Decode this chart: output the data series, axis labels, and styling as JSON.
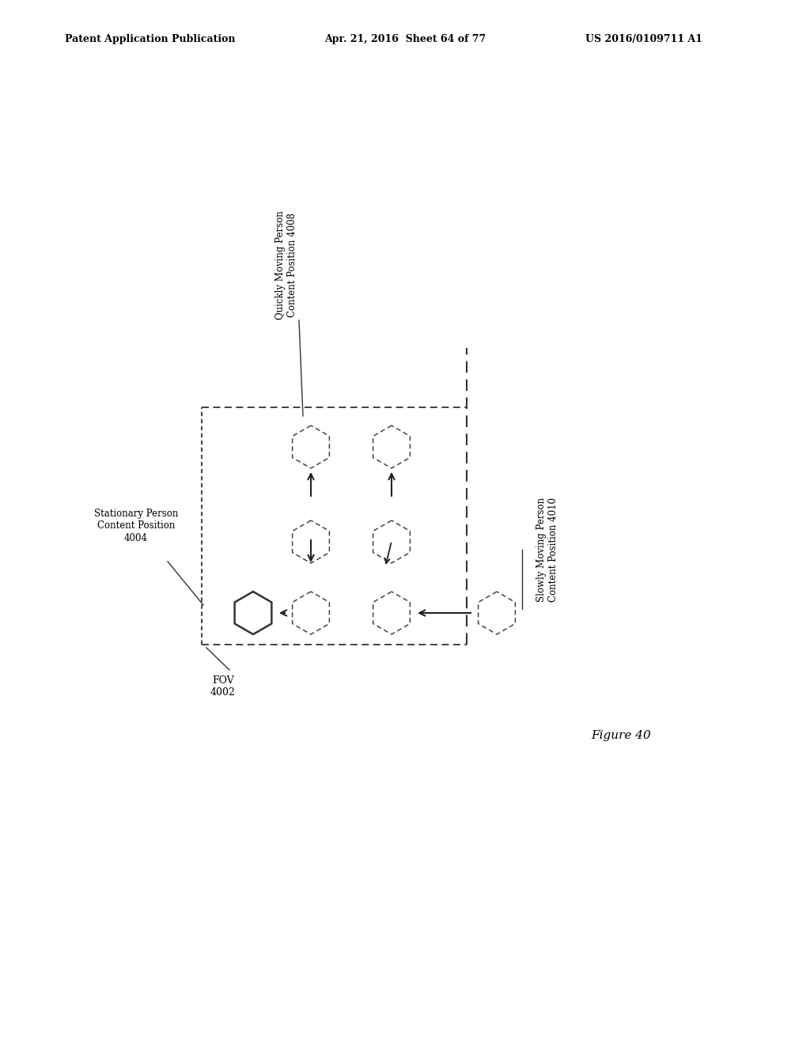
{
  "header_left": "Patent Application Publication",
  "header_mid": "Apr. 21, 2016  Sheet 64 of 77",
  "header_right": "US 2016/0109711 A1",
  "figure_label": "Figure 40",
  "fov_label": "FOV\n4002",
  "stationary_label": "Stationary Person\nContent Position\n4004",
  "quickly_label": "Quickly Moving Person\nContent Position 4008",
  "slowly_label": "Slowly Moving Person\nContent Position 4010",
  "bg_color": "#ffffff",
  "line_color": "#333333"
}
